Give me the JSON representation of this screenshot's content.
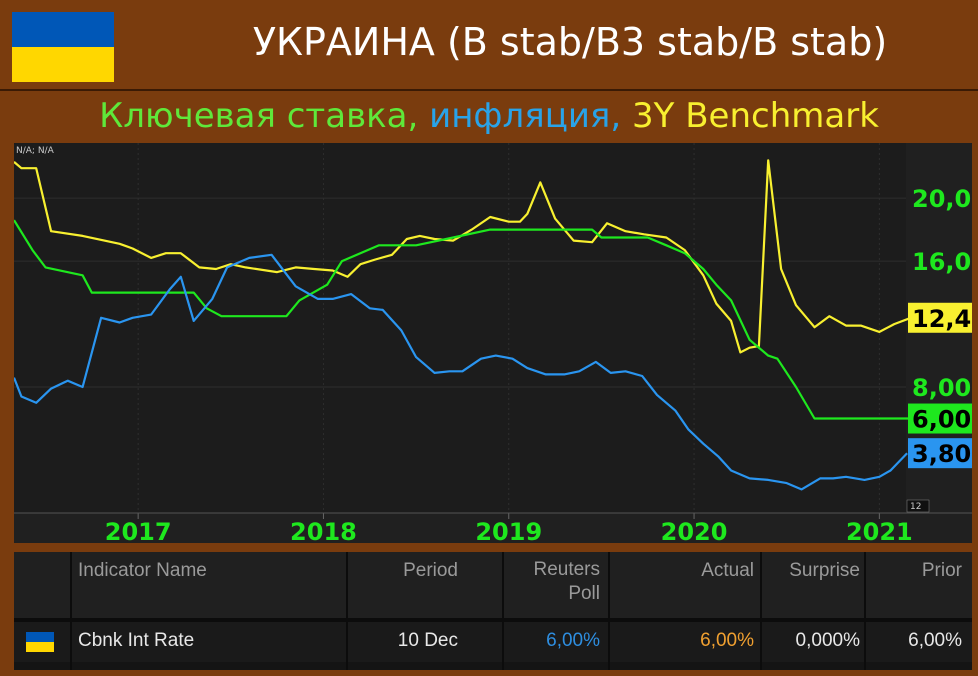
{
  "header": {
    "title": "УКРАИНА (B stab/B3 stab/B stab)",
    "flag_colors": [
      "#0057b7",
      "#ffd700"
    ]
  },
  "subtitle": {
    "part1": "Ключевая ставка,",
    "part2": "инфляция,",
    "part3": "3Y Benchmark",
    "colors": [
      "#5fe83a",
      "#29a3e8",
      "#f8f030"
    ]
  },
  "chart_data": {
    "type": "line",
    "note_label": "N/A; N/A",
    "scale_label": "12",
    "x_ticks": [
      "2017",
      "2018",
      "2019",
      "2020",
      "2021"
    ],
    "y_ticks": [
      "20,0",
      "16,0",
      "8,00"
    ],
    "ylim": [
      0,
      23.5
    ],
    "xlim": [
      2016.33,
      2021.5
    ],
    "grid": true,
    "value_labels": [
      {
        "text": "12,4",
        "series": "3Y Benchmark",
        "value": 12.4,
        "bg": "#f8f030"
      },
      {
        "text": "6,00",
        "series": "Ключевая ставка",
        "value": 6.0,
        "bg": "#1ee81e"
      },
      {
        "text": "3,80",
        "series": "инфляция",
        "value": 3.8,
        "bg": "#2a95f0"
      }
    ],
    "series": [
      {
        "name": "3Y Benchmark",
        "color": "#f8f030",
        "points": [
          [
            2016.33,
            22.3
          ],
          [
            2016.37,
            21.9
          ],
          [
            2016.45,
            21.9
          ],
          [
            2016.53,
            17.9
          ],
          [
            2016.7,
            17.6
          ],
          [
            2016.9,
            17.1
          ],
          [
            2016.97,
            16.8
          ],
          [
            2017.07,
            16.2
          ],
          [
            2017.15,
            16.5
          ],
          [
            2017.23,
            16.5
          ],
          [
            2017.33,
            15.6
          ],
          [
            2017.42,
            15.5
          ],
          [
            2017.5,
            15.8
          ],
          [
            2017.58,
            15.6
          ],
          [
            2017.75,
            15.3
          ],
          [
            2017.85,
            15.6
          ],
          [
            2017.95,
            15.5
          ],
          [
            2018.05,
            15.4
          ],
          [
            2018.13,
            15.0
          ],
          [
            2018.2,
            15.8
          ],
          [
            2018.28,
            16.1
          ],
          [
            2018.37,
            16.4
          ],
          [
            2018.45,
            17.4
          ],
          [
            2018.52,
            17.6
          ],
          [
            2018.6,
            17.4
          ],
          [
            2018.7,
            17.3
          ],
          [
            2018.8,
            18.0
          ],
          [
            2018.9,
            18.8
          ],
          [
            2019.0,
            18.5
          ],
          [
            2019.06,
            18.5
          ],
          [
            2019.1,
            19.0
          ],
          [
            2019.17,
            21.0
          ],
          [
            2019.25,
            18.7
          ],
          [
            2019.35,
            17.3
          ],
          [
            2019.45,
            17.2
          ],
          [
            2019.53,
            18.4
          ],
          [
            2019.63,
            17.9
          ],
          [
            2019.73,
            17.7
          ],
          [
            2019.85,
            17.5
          ],
          [
            2019.95,
            16.7
          ],
          [
            2020.05,
            15.1
          ],
          [
            2020.12,
            13.3
          ],
          [
            2020.2,
            12.2
          ],
          [
            2020.25,
            10.2
          ],
          [
            2020.3,
            10.5
          ],
          [
            2020.35,
            10.6
          ],
          [
            2020.4,
            22.4
          ],
          [
            2020.47,
            15.5
          ],
          [
            2020.55,
            13.2
          ],
          [
            2020.65,
            11.8
          ],
          [
            2020.73,
            12.5
          ],
          [
            2020.82,
            11.9
          ],
          [
            2020.9,
            11.9
          ],
          [
            2021.0,
            11.5
          ],
          [
            2021.08,
            12.0
          ],
          [
            2021.17,
            12.4
          ]
        ]
      },
      {
        "name": "Ключевая ставка",
        "color": "#1ee81e",
        "points": [
          [
            2016.33,
            18.6
          ],
          [
            2016.43,
            16.7
          ],
          [
            2016.5,
            15.6
          ],
          [
            2016.7,
            15.1
          ],
          [
            2016.75,
            14.0
          ],
          [
            2017.12,
            14.0
          ],
          [
            2017.3,
            14.0
          ],
          [
            2017.37,
            13.0
          ],
          [
            2017.45,
            12.5
          ],
          [
            2017.8,
            12.5
          ],
          [
            2017.87,
            13.5
          ],
          [
            2018.02,
            14.5
          ],
          [
            2018.1,
            16.0
          ],
          [
            2018.3,
            17.0
          ],
          [
            2018.5,
            17.0
          ],
          [
            2018.7,
            17.5
          ],
          [
            2018.9,
            18.0
          ],
          [
            2019.3,
            18.0
          ],
          [
            2019.45,
            18.0
          ],
          [
            2019.5,
            17.5
          ],
          [
            2019.75,
            17.5
          ],
          [
            2019.85,
            17.0
          ],
          [
            2019.95,
            16.5
          ],
          [
            2020.05,
            15.5
          ],
          [
            2020.12,
            14.5
          ],
          [
            2020.2,
            13.5
          ],
          [
            2020.3,
            11.0
          ],
          [
            2020.4,
            10.0
          ],
          [
            2020.45,
            9.8
          ],
          [
            2020.55,
            8.0
          ],
          [
            2020.65,
            6.0
          ],
          [
            2021.17,
            6.0
          ]
        ]
      },
      {
        "name": "инфляция",
        "color": "#2a95f0",
        "points": [
          [
            2016.33,
            8.6
          ],
          [
            2016.37,
            7.4
          ],
          [
            2016.45,
            7.0
          ],
          [
            2016.53,
            7.9
          ],
          [
            2016.62,
            8.4
          ],
          [
            2016.7,
            8.0
          ],
          [
            2016.8,
            12.4
          ],
          [
            2016.9,
            12.1
          ],
          [
            2016.97,
            12.4
          ],
          [
            2017.07,
            12.6
          ],
          [
            2017.17,
            14.2
          ],
          [
            2017.23,
            15.0
          ],
          [
            2017.3,
            12.2
          ],
          [
            2017.4,
            13.6
          ],
          [
            2017.48,
            15.6
          ],
          [
            2017.6,
            16.2
          ],
          [
            2017.72,
            16.4
          ],
          [
            2017.85,
            14.4
          ],
          [
            2017.97,
            13.6
          ],
          [
            2018.05,
            13.6
          ],
          [
            2018.15,
            13.9
          ],
          [
            2018.25,
            13.0
          ],
          [
            2018.32,
            12.9
          ],
          [
            2018.42,
            11.6
          ],
          [
            2018.5,
            9.9
          ],
          [
            2018.6,
            8.9
          ],
          [
            2018.68,
            9.0
          ],
          [
            2018.75,
            9.0
          ],
          [
            2018.85,
            9.8
          ],
          [
            2018.93,
            10.0
          ],
          [
            2019.02,
            9.8
          ],
          [
            2019.1,
            9.2
          ],
          [
            2019.2,
            8.8
          ],
          [
            2019.3,
            8.8
          ],
          [
            2019.38,
            9.0
          ],
          [
            2019.47,
            9.6
          ],
          [
            2019.55,
            8.9
          ],
          [
            2019.63,
            9.0
          ],
          [
            2019.72,
            8.7
          ],
          [
            2019.8,
            7.5
          ],
          [
            2019.9,
            6.5
          ],
          [
            2019.97,
            5.3
          ],
          [
            2020.05,
            4.4
          ],
          [
            2020.13,
            3.6
          ],
          [
            2020.2,
            2.7
          ],
          [
            2020.3,
            2.2
          ],
          [
            2020.4,
            2.1
          ],
          [
            2020.5,
            1.9
          ],
          [
            2020.58,
            1.5
          ],
          [
            2020.68,
            2.2
          ],
          [
            2020.75,
            2.2
          ],
          [
            2020.82,
            2.3
          ],
          [
            2020.92,
            2.1
          ],
          [
            2021.0,
            2.3
          ],
          [
            2021.06,
            2.7
          ],
          [
            2021.15,
            3.8
          ]
        ]
      }
    ]
  },
  "table": {
    "headers": {
      "indicator": "Indicator Name",
      "period": "Period",
      "poll_line1": "Reuters",
      "poll_line2": "Poll",
      "actual": "Actual",
      "surprise": "Surprise",
      "prior": "Prior"
    },
    "row": {
      "indicator": "Cbnk Int Rate",
      "period": "10 Dec",
      "poll": "6,00%",
      "actual": "6,00%",
      "surprise": "0,000%",
      "prior": "6,00%",
      "poll_color": "#2e8ee0",
      "actual_color": "#f0a030"
    }
  }
}
